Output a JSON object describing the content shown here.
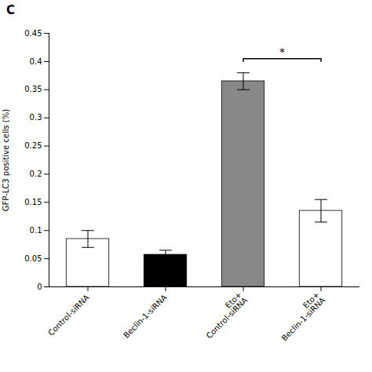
{
  "chart_data": {
    "type": "bar",
    "title": "C",
    "categories": [
      "Control-siRNA",
      "Beclin-1-siRNA",
      "Eto+\nControl-siRNA",
      "Eto+\nBeclin-1-siRNA"
    ],
    "values": [
      0.085,
      0.057,
      0.365,
      0.135
    ],
    "errors": [
      0.015,
      0.008,
      0.015,
      0.02
    ],
    "colors": [
      "white",
      "black",
      "#888888",
      "white"
    ],
    "ylabel": "GFP-LC3 positive cells (%)",
    "ylim": [
      0,
      0.45
    ],
    "yticks": [
      0,
      0.05,
      0.1,
      0.15,
      0.2,
      0.25,
      0.3,
      0.35,
      0.4,
      0.45
    ],
    "grid": false,
    "annotations": [
      {
        "text": "*",
        "x1": "Eto+\nControl-siRNA",
        "x2": "Eto+\nBeclin-1-siRNA",
        "y": 0.405
      }
    ]
  }
}
